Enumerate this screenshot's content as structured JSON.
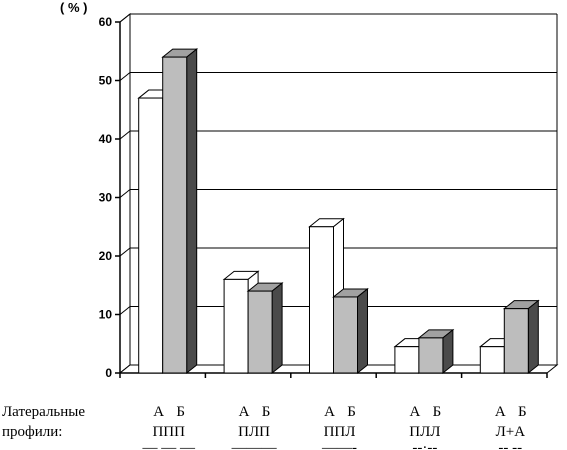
{
  "chart_data": {
    "type": "bar",
    "ylabel": "( % )",
    "ylim": [
      0,
      60
    ],
    "yticks": [
      0,
      10,
      20,
      30,
      40,
      50,
      60
    ],
    "grid": "horizontal",
    "category_axis_label": [
      "Латеральные",
      "профили:"
    ],
    "categories": [
      {
        "label": "ППП",
        "pattern": "— — —"
      },
      {
        "label": "ПЛП",
        "pattern": "———"
      },
      {
        "label": "ППЛ",
        "pattern": "——-"
      },
      {
        "label": "ПЛЛ",
        "pattern": "--·--"
      },
      {
        "label": "Л+А",
        "pattern": "-- --"
      }
    ],
    "series": [
      {
        "name": "А",
        "color": "#ffffff",
        "values": [
          47,
          16,
          25,
          4.5,
          4.5
        ]
      },
      {
        "name": "Б",
        "color": "#bdbdbd",
        "values": [
          54,
          14,
          13,
          6,
          11
        ]
      }
    ]
  }
}
